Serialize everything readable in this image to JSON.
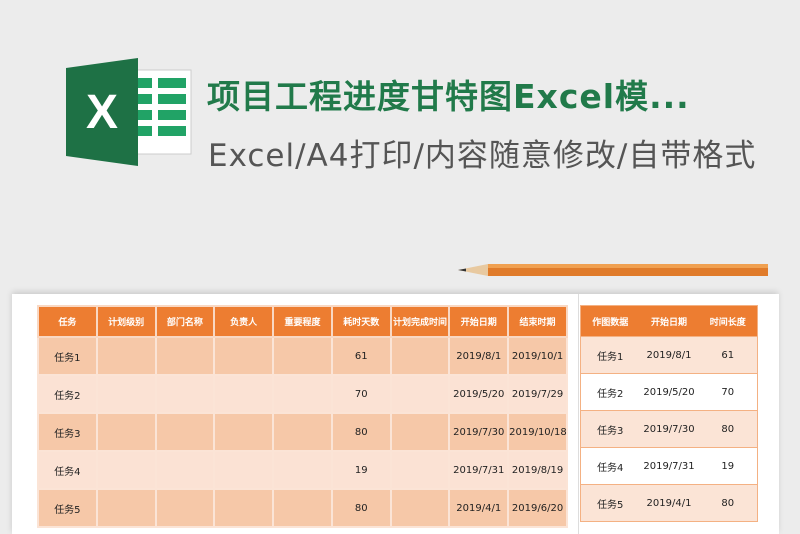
{
  "header": {
    "title": "项目工程进度甘特图Excel模...",
    "subtitle": "Excel/A4打印/内容随意修改/自带格式",
    "logo_letter": "X"
  },
  "colors": {
    "brand_green": "#217a4a",
    "header_orange": "#ed7d31",
    "row_dark": "#f6c8a8",
    "row_light": "#fbe2d4"
  },
  "main_table": {
    "columns": [
      "任务",
      "计划级别",
      "部门名称",
      "负责人",
      "重要程度",
      "耗时天数",
      "计划完成时间",
      "开始日期",
      "结束时期"
    ],
    "rows": [
      [
        "任务1",
        "",
        "",
        "",
        "",
        "61",
        "",
        "2019/8/1",
        "2019/10/1"
      ],
      [
        "任务2",
        "",
        "",
        "",
        "",
        "70",
        "",
        "2019/5/20",
        "2019/7/29"
      ],
      [
        "任务3",
        "",
        "",
        "",
        "",
        "80",
        "",
        "2019/7/30",
        "2019/10/18"
      ],
      [
        "任务4",
        "",
        "",
        "",
        "",
        "19",
        "",
        "2019/7/31",
        "2019/8/19"
      ],
      [
        "任务5",
        "",
        "",
        "",
        "",
        "80",
        "",
        "2019/4/1",
        "2019/6/20"
      ]
    ]
  },
  "chart_table": {
    "columns": [
      "作图数据",
      "开始日期",
      "时间长度"
    ],
    "rows": [
      [
        "任务1",
        "2019/8/1",
        "61"
      ],
      [
        "任务2",
        "2019/5/20",
        "70"
      ],
      [
        "任务3",
        "2019/7/30",
        "80"
      ],
      [
        "任务4",
        "2019/7/31",
        "19"
      ],
      [
        "任务5",
        "2019/4/1",
        "80"
      ]
    ]
  }
}
